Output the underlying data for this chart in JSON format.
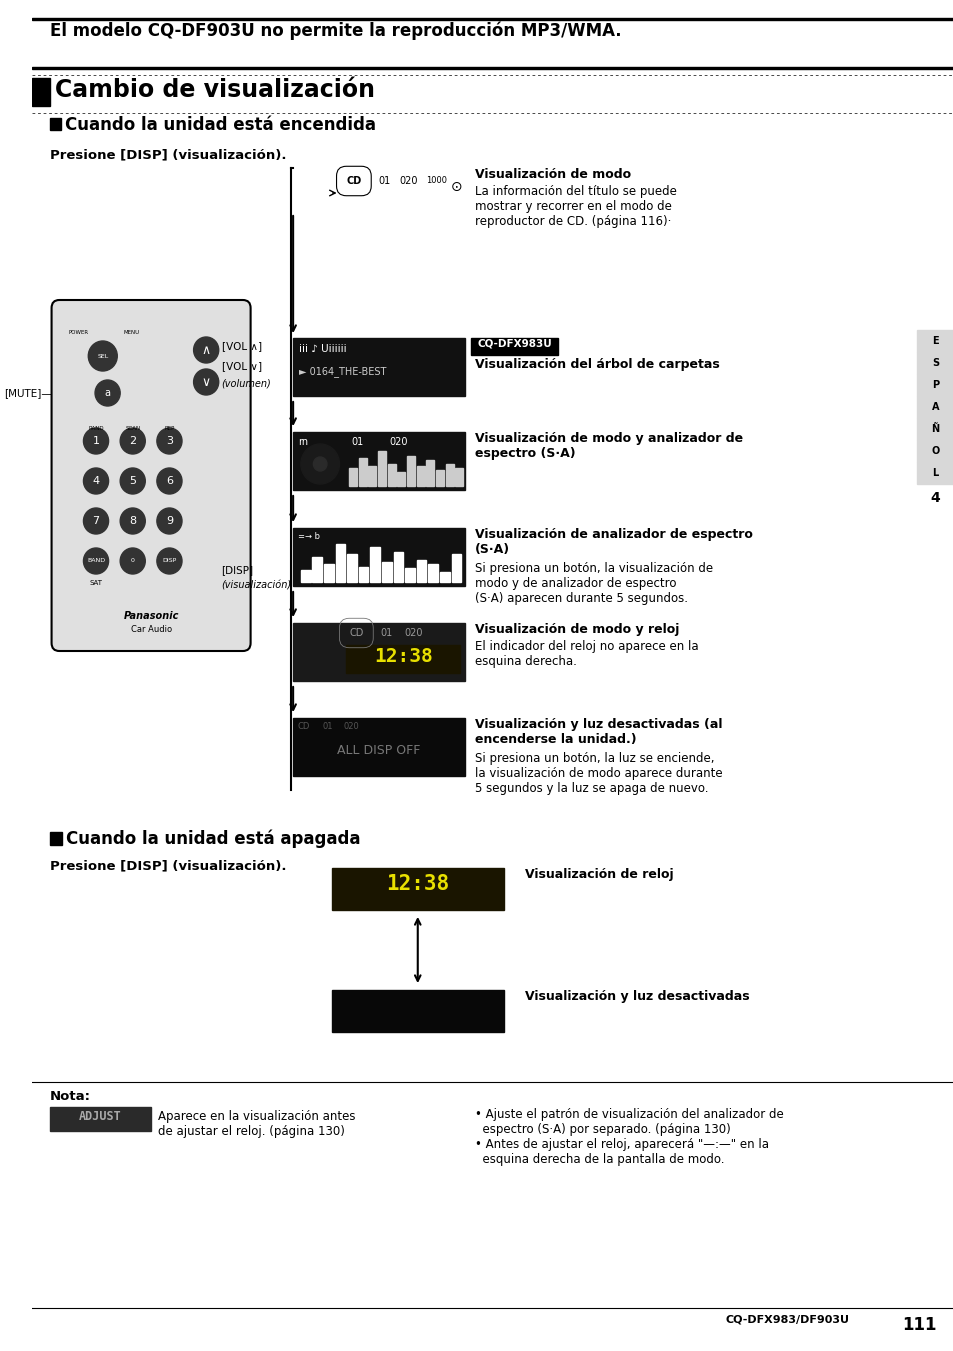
{
  "bg_color": "#ffffff",
  "page_width": 9.54,
  "page_height": 13.51,
  "top_notice": "El modelo CQ-DF903U no permite la reproducción MP3/WMA.",
  "title": "Cambio de visualización",
  "section1_header": "Cuando la unidad está encendida",
  "section2_header": "Cuando la unidad está apagada",
  "press_label1": "Presione [DISP] (visualización).",
  "press_label2": "Presione [DISP] (visualización).",
  "right_labels": [
    {
      "bold": "Visualización de modo",
      "text": "La información del título se puede\nmostrar y recorrer en el modo de\nreproductor de CD. (página 116)·"
    },
    {
      "bold_prefix": "CQ-DFX983U",
      "bold": "Visualización del árbol de carpetas",
      "text": ""
    },
    {
      "bold": "Visualización de modo y analizador de\nespectro (S·A)",
      "text": ""
    },
    {
      "bold": "Visualización de analizador de espectro\n(S·A)",
      "text": "Si presiona un botón, la visualización de\nmodo y de analizador de espectro\n(S·A) aparecen durante 5 segundos."
    },
    {
      "bold": "Visualización de modo y reloj",
      "text": "El indicador del reloj no aparece en la\nesquina derecha."
    },
    {
      "bold": "Visualización y luz desactivadas (al\nencenderse la unidad.)",
      "text": "Si presiona un botón, la luz se enciende,\nla visualización de modo aparece durante\n5 segundos y la luz se apaga de nuevo."
    }
  ],
  "section2_labels": [
    {
      "bold": "Visualización de reloj",
      "text": ""
    },
    {
      "bold": "Visualización y luz desactivadas",
      "text": ""
    }
  ],
  "nota_title": "Nota:",
  "nota_item1": "Aparece en la visualización antes\nde ajustar el reloj. (página 130)",
  "nota_item2_line1": "• Ajuste el patrón de visualización del analizador de",
  "nota_item2_line2": "  espectro (S·A) por separado. (página 130)",
  "nota_item2_line3": "• Antes de ajustar el reloj, aparecerá \"—:—\" en la",
  "nota_item2_line4": "  esquina derecha de la pantalla de modo.",
  "side_letters": [
    "E",
    "S",
    "P",
    "A",
    "Ñ",
    "O",
    "L"
  ],
  "side_number": "4",
  "page_number": "111",
  "bottom_model": "CQ-DFX983/DF903U",
  "vol_up": "[VOL ∧]",
  "vol_down": "[VOL ∨]",
  "volumen": "(volumen)",
  "mute_label": "[MUTE]",
  "disp_label": "[DISP]",
  "visualizacion": "(visualización)"
}
